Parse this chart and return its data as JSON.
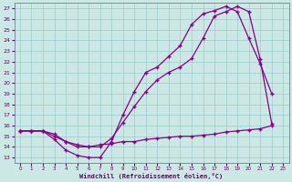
{
  "xlabel": "Windchill (Refroidissement éolien,°C)",
  "bg_color": "#cce8e4",
  "line_color": "#880088",
  "grid_color": "#99cccc",
  "text_color": "#660066",
  "spine_color": "#7777aa",
  "xlim": [
    -0.5,
    23.5
  ],
  "ylim": [
    12.5,
    27.5
  ],
  "xticks": [
    0,
    1,
    2,
    3,
    4,
    5,
    6,
    7,
    8,
    9,
    10,
    11,
    12,
    13,
    14,
    15,
    16,
    17,
    18,
    19,
    20,
    21,
    22,
    23
  ],
  "yticks": [
    13,
    14,
    15,
    16,
    17,
    18,
    19,
    20,
    21,
    22,
    23,
    24,
    25,
    26,
    27
  ],
  "curve1_x": [
    0,
    1,
    2,
    3,
    4,
    5,
    6,
    7,
    8,
    9,
    10,
    11,
    12,
    13,
    14,
    15,
    16,
    17,
    18,
    19,
    20,
    21,
    22
  ],
  "curve1_y": [
    15.5,
    15.5,
    15.5,
    14.7,
    13.7,
    13.2,
    13.0,
    13.0,
    14.5,
    17.0,
    19.2,
    21.0,
    21.5,
    22.5,
    23.5,
    25.5,
    26.5,
    26.8,
    27.2,
    26.7,
    24.2,
    21.8,
    19.0
  ],
  "curve2_x": [
    0,
    1,
    2,
    3,
    4,
    5,
    6,
    7,
    8,
    9,
    10,
    11,
    12,
    13,
    14,
    15,
    16,
    17,
    18,
    19,
    20,
    21,
    22
  ],
  "curve2_y": [
    15.5,
    15.5,
    15.5,
    15.0,
    14.5,
    14.0,
    14.0,
    14.2,
    14.3,
    14.5,
    14.5,
    14.7,
    14.8,
    14.9,
    15.0,
    15.0,
    15.1,
    15.2,
    15.4,
    15.5,
    15.6,
    15.7,
    16.0
  ],
  "curve3_x": [
    0,
    1,
    2,
    3,
    4,
    5,
    6,
    7,
    8,
    9,
    10,
    11,
    12,
    13,
    14,
    15,
    16,
    17,
    18,
    19,
    20,
    21,
    22
  ],
  "curve3_y": [
    15.5,
    15.5,
    15.5,
    15.2,
    14.5,
    14.2,
    14.0,
    14.0,
    14.8,
    16.3,
    17.8,
    19.2,
    20.3,
    21.0,
    21.5,
    22.3,
    24.2,
    26.3,
    26.7,
    27.2,
    26.7,
    22.2,
    16.2
  ]
}
